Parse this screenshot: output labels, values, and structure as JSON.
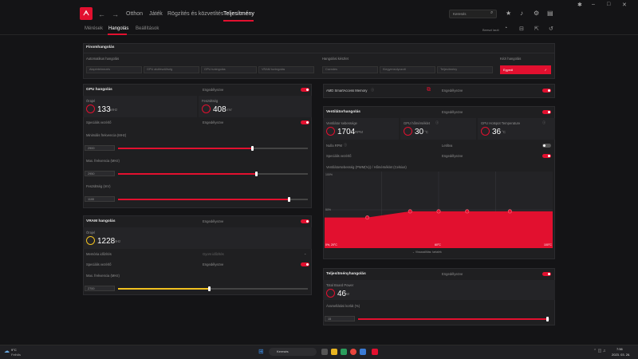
{
  "colors": {
    "accent": "#e2102f",
    "vram_accent": "#f0c020",
    "bg": "#141416",
    "card": "#1f1f21"
  },
  "nav": {
    "items": [
      "Otthon",
      "Játék",
      "Rögzítés és közvetítés",
      "Teljesítmény"
    ],
    "active": 3,
    "search_placeholder": "Keresés"
  },
  "subnav": {
    "items": [
      "Mérések",
      "Hangolás",
      "Beállítások"
    ],
    "active": 1,
    "right_label": "Beeszi lauti"
  },
  "finetune": {
    "title": "Finomhangolás",
    "auto_label": "Automatikus hangolás",
    "auto_opts": [
      "Alapértelmezés",
      "GPU alulfeszültség",
      "GPU tuningolás",
      "VRAM tuningolás"
    ],
    "preset_label": "Hangolási készlet",
    "preset_opts": [
      "Csendes",
      "Kiegyensúlyozott",
      "Teljesítmény"
    ],
    "manual_label": "Kézi hangolás",
    "manual_btn": "Egyedi",
    "check": "✓"
  },
  "gpu": {
    "title": "GPU hangolás",
    "state": "Engedélyezve",
    "clock_label": "Órajel",
    "clock_val": "133",
    "clock_unit": "MHz",
    "volt_label": "Feszültség",
    "volt_val": "408",
    "volt_unit": "mV",
    "adv_label": "Speciális vezérlő",
    "adv_state": "Engedélyezve",
    "min_freq_label": "Minimális frekvencia (MHz)",
    "min_freq_val": "2900",
    "min_freq": 0.71,
    "max_freq_label": "Max. frekvencia (MHz)",
    "max_freq_val": "2950",
    "max_freq": 0.73,
    "voltage_label": "Feszültség (mV)",
    "voltage_val": "1100",
    "voltage": 0.9
  },
  "vram": {
    "title": "VRAM hangolás",
    "state": "Engedélyezve",
    "clock_label": "Órajel",
    "clock_val": "1228",
    "clock_unit": "MHz",
    "mem_timing_label": "Memória időzítés",
    "mem_timing_val": "Gyors időzítés",
    "adv_label": "Speciális vezérlő",
    "adv_state": "Engedélyezve",
    "max_freq_label": "Max. frekvencia (MHz)",
    "max_freq_val": "2700",
    "max_freq": 0.48
  },
  "sam": {
    "label": "AMD SmartAccess Memory",
    "state": "Engedélyezve"
  },
  "fan": {
    "title": "Ventilátorhangolás",
    "state": "Engedélyezve",
    "speed_label": "Ventilátor sebessége",
    "speed_val": "1704",
    "speed_unit": "RPM",
    "gpu_temp_label": "GPU hőmérséklet",
    "gpu_temp_val": "30",
    "gpu_temp_unit": "°C",
    "hotspot_label": "GPU Hotspot Temperature",
    "hotspot_val": "36",
    "hotspot_unit": "°C",
    "zero_rpm_label": "Nulla RPM",
    "zero_rpm_state": "Letiltva",
    "adv_label": "Speciális vezérlő",
    "adv_state": "Engedélyezve",
    "curve_label": "Ventilátorsebesség (PWM(%)) / Hőmérséklet (Celsius)",
    "y_top": "100%",
    "y_mid": "50%",
    "x_left": "0%, 20°C",
    "x_mid": "60°C",
    "x_right": "100°C",
    "reset": "Visszaállítás: tartalék"
  },
  "fan_curve": [
    {
      "t": 20,
      "p": 40
    },
    {
      "t": 35,
      "p": 40
    },
    {
      "t": 50,
      "p": 48
    },
    {
      "t": 60,
      "p": 48
    },
    {
      "t": 70,
      "p": 48
    },
    {
      "t": 85,
      "p": 48
    },
    {
      "t": 100,
      "p": 48
    }
  ],
  "power": {
    "title": "Teljesítményhangolás",
    "state": "Engedélyezve",
    "tbp_label": "Total Board Power",
    "tbp_val": "46",
    "tbp_unit": "W",
    "limit_label": "Áramellátási korlát (%)",
    "limit_val": "15",
    "limit": 0.99
  },
  "taskbar": {
    "weather_temp": "9°C",
    "weather_desc": "Felhős",
    "search": "Keresés",
    "time": "7:56",
    "date": "2023. 03. 26."
  }
}
